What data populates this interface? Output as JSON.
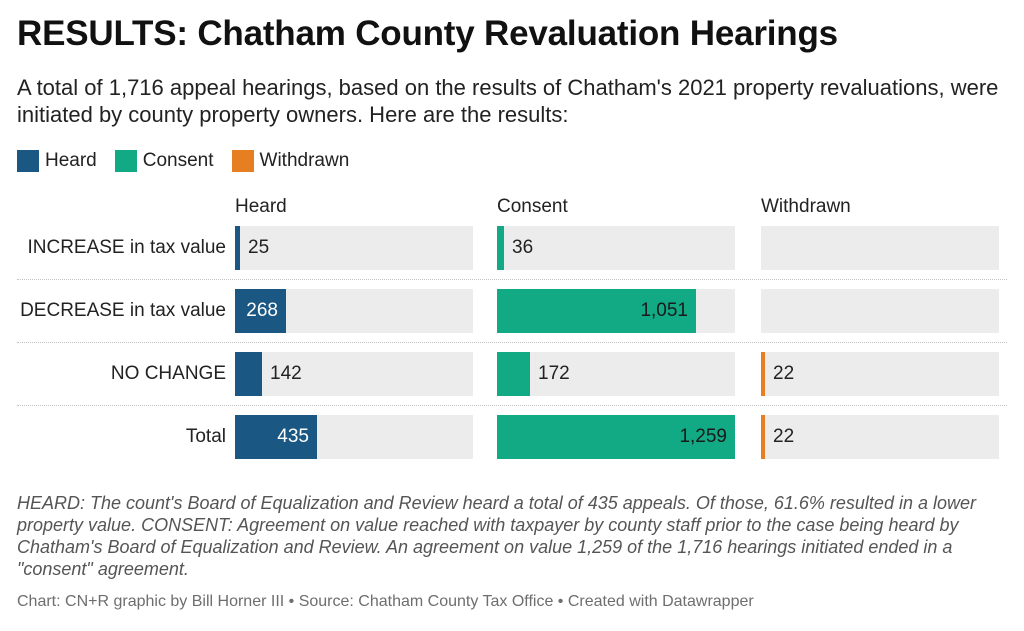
{
  "title": "RESULTS: Chatham County Revaluation Hearings",
  "subtitle": "A total of 1,716 appeal hearings, based on the results of Chatham's 2021 property revaluations, were initiated by county property owners. Here are the results:",
  "legend": [
    {
      "label": "Heard",
      "color": "#1a5783"
    },
    {
      "label": "Consent",
      "color": "#12a985"
    },
    {
      "label": "Withdrawn",
      "color": "#e67e22"
    }
  ],
  "chart_data": {
    "type": "bar",
    "categories": [
      "INCREASE in tax value",
      "DECREASE in tax value",
      "NO CHANGE",
      "Total"
    ],
    "series": [
      {
        "name": "Heard",
        "color": "#1a5783",
        "values": [
          25,
          268,
          142,
          435
        ],
        "labels": [
          "25",
          "268",
          "142",
          "435"
        ]
      },
      {
        "name": "Consent",
        "color": "#12a985",
        "values": [
          36,
          1051,
          172,
          1259
        ],
        "labels": [
          "36",
          "1,051",
          "172",
          "1,259"
        ]
      },
      {
        "name": "Withdrawn",
        "color": "#e67e22",
        "values": [
          null,
          null,
          22,
          22
        ],
        "labels": [
          "",
          "",
          "22",
          "22"
        ]
      }
    ],
    "scale_max": 1259
  },
  "notes": "HEARD: The count's Board of Equalization and Review heard a total of 435 appeals. Of those, 61.6% resulted in a lower property value. CONSENT: Agreement on value reached with taxpayer by county staff prior to the case being heard by Chatham's Board of Equalization and Review. An agreement on value 1,259 of the 1,716 hearings initiated ended in a \"consent\" agreement.",
  "source": "Chart: CN+R graphic by Bill Horner III • Source: Chatham County Tax Office • Created with Datawrapper"
}
